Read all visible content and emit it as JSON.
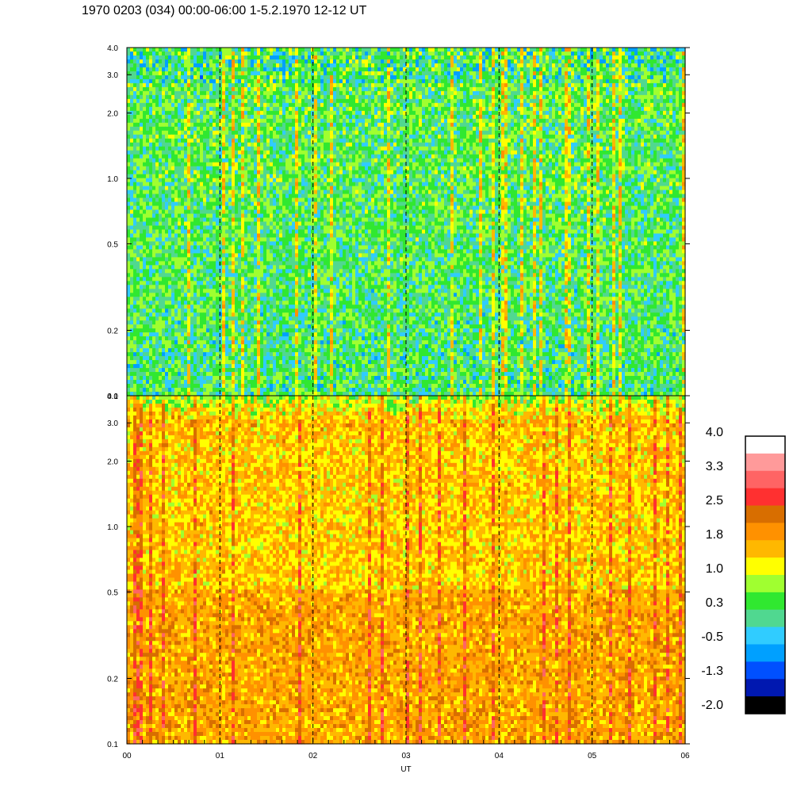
{
  "title": "1970 0203 (034) 00:00-06:00 1-5.2.1970  12-12 UT",
  "chart_data": {
    "type": "heatmap",
    "title": "1970 0203 (034) 00:00-06:00 1-5.2.1970  12-12 UT",
    "xlabel": "UT",
    "x_ticks": [
      "00",
      "01",
      "02",
      "03",
      "04",
      "05",
      "06"
    ],
    "xlim": [
      0,
      6
    ],
    "panels": [
      {
        "name": "upper",
        "ylim": [
          0.1,
          4.0
        ],
        "y_scale": "log",
        "y_ticks": [
          "0.1",
          "0.2",
          "0.5",
          "1.0",
          "2.0",
          "3.0",
          "4.0"
        ],
        "dominant_level": 0.5
      },
      {
        "name": "lower",
        "ylim": [
          0.1,
          4.0
        ],
        "y_scale": "log",
        "y_ticks": [
          "0.1",
          "0.2",
          "0.5",
          "1.0",
          "2.0",
          "3.0",
          "4.0"
        ],
        "dominant_level": 1.8
      }
    ],
    "colorbar": {
      "tick_labels": [
        "4.0",
        "3.3",
        "2.5",
        "1.8",
        "1.0",
        "0.3",
        "-0.5",
        "-1.3",
        "-2.0"
      ],
      "colors_top_to_bottom": [
        "#ffffff",
        "#ff9a9a",
        "#ff6464",
        "#ff3030",
        "#d86e00",
        "#ff9100",
        "#ffb800",
        "#ffff00",
        "#a0ff30",
        "#30e830",
        "#50d890",
        "#30ccff",
        "#00a0ff",
        "#0050ff",
        "#0018b0",
        "#000000"
      ]
    },
    "grid": "dashed vertical lines at each hour",
    "colormap_levels": [
      {
        "value": -2.0,
        "color": "#000000"
      },
      {
        "value": -1.5,
        "color": "#0018b0"
      },
      {
        "value": -1.0,
        "color": "#0050ff"
      },
      {
        "value": -0.5,
        "color": "#00a0ff"
      },
      {
        "value": 0.0,
        "color": "#30ccff"
      },
      {
        "value": 0.2,
        "color": "#50d890"
      },
      {
        "value": 0.45,
        "color": "#30e830"
      },
      {
        "value": 0.8,
        "color": "#a0ff30"
      },
      {
        "value": 1.1,
        "color": "#ffff00"
      },
      {
        "value": 1.5,
        "color": "#ffb800"
      },
      {
        "value": 1.9,
        "color": "#ff9100"
      },
      {
        "value": 2.3,
        "color": "#d86e00"
      },
      {
        "value": 2.7,
        "color": "#ff3030"
      },
      {
        "value": 3.1,
        "color": "#ff6464"
      },
      {
        "value": 3.5,
        "color": "#ff9a9a"
      },
      {
        "value": 4.0,
        "color": "#ffffff"
      }
    ]
  }
}
